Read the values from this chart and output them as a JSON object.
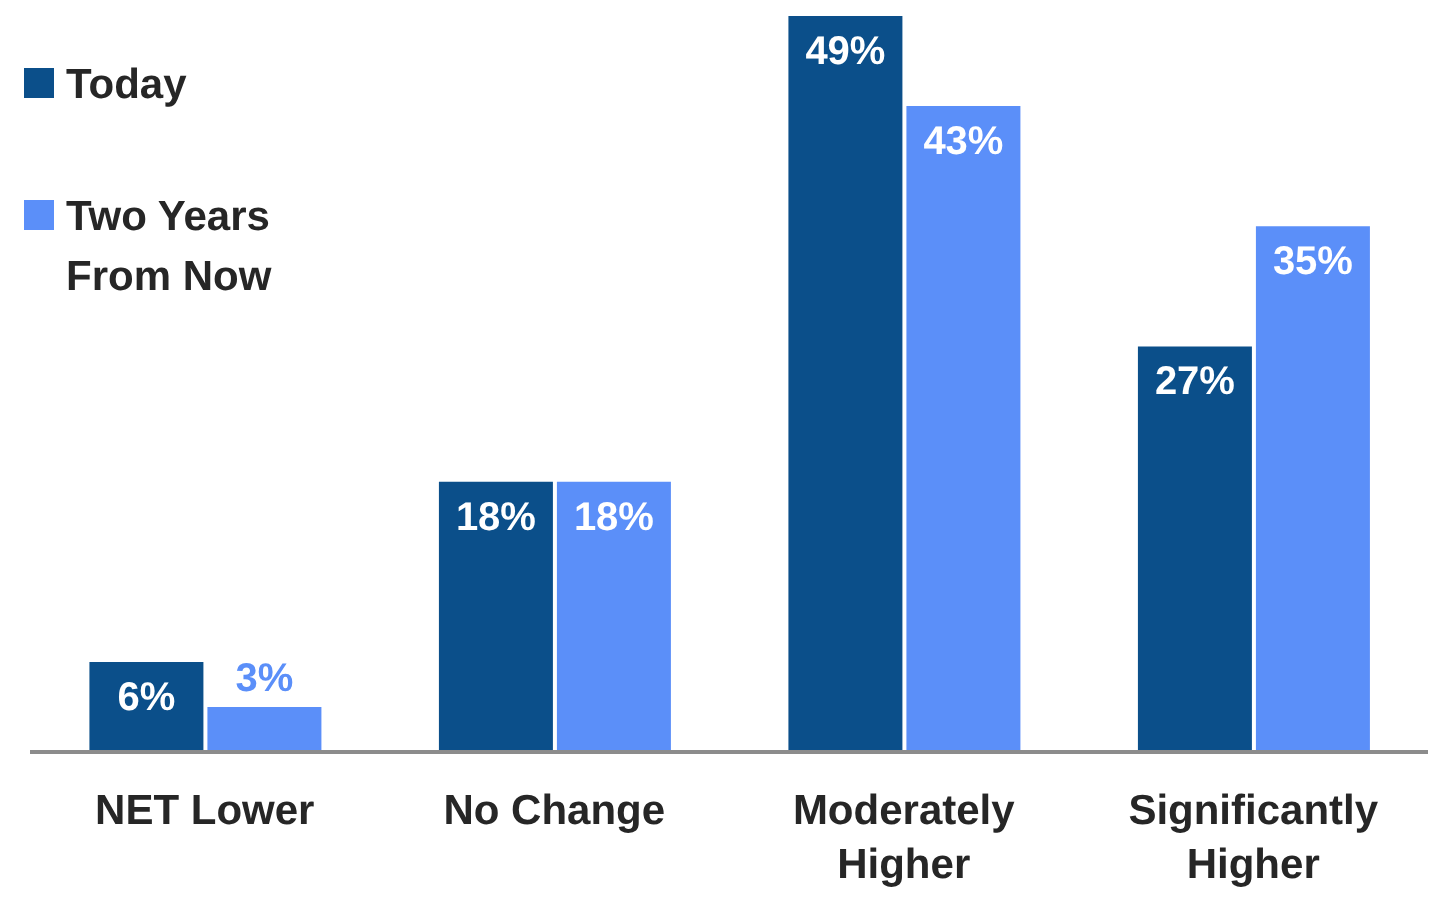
{
  "chart_data": {
    "type": "bar",
    "categories": [
      "NET Lower",
      "No Change",
      "Moderately Higher",
      "Significantly Higher"
    ],
    "series": [
      {
        "name": "Today",
        "color": "#0b4f8a",
        "values": [
          6,
          18,
          49,
          27
        ],
        "value_labels": [
          "6%",
          "18%",
          "49%",
          "27%"
        ]
      },
      {
        "name": "Two Years From Now",
        "color": "#5b8ff9",
        "values": [
          3,
          18,
          43,
          35
        ],
        "value_labels": [
          "3%",
          "18%",
          "43%",
          "35%"
        ]
      }
    ],
    "legend": "top left",
    "grid": false
  }
}
